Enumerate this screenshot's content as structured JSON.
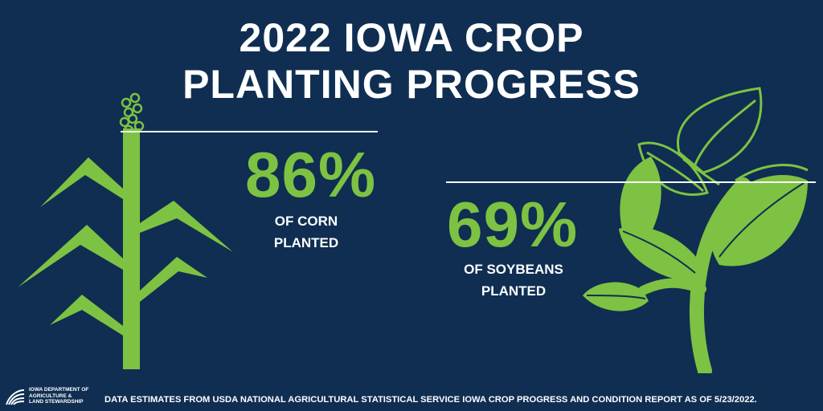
{
  "title": {
    "line1": "2022 IOWA CROP",
    "line2": "PLANTING PROGRESS"
  },
  "corn": {
    "percent": "86%",
    "label_line1": "OF CORN",
    "label_line2": "PLANTED",
    "icon": "corn-plant-icon"
  },
  "soybeans": {
    "percent": "69%",
    "label_line1": "OF SOYBEANS",
    "label_line2": "PLANTED",
    "icon": "soybean-plant-icon"
  },
  "footer": {
    "logo_line1": "IOWA DEPARTMENT OF",
    "logo_line2": "AGRICULTURE &",
    "logo_line3": "LAND STEWARDSHIP",
    "source": "DATA ESTIMATES FROM USDA NATIONAL AGRICULTURAL STATISTICAL SERVICE IOWA CROP PROGRESS AND CONDITION REPORT AS OF 5/23/2022."
  },
  "colors": {
    "background": "#0f2e52",
    "accent_green": "#7dc242",
    "text": "#ffffff"
  }
}
